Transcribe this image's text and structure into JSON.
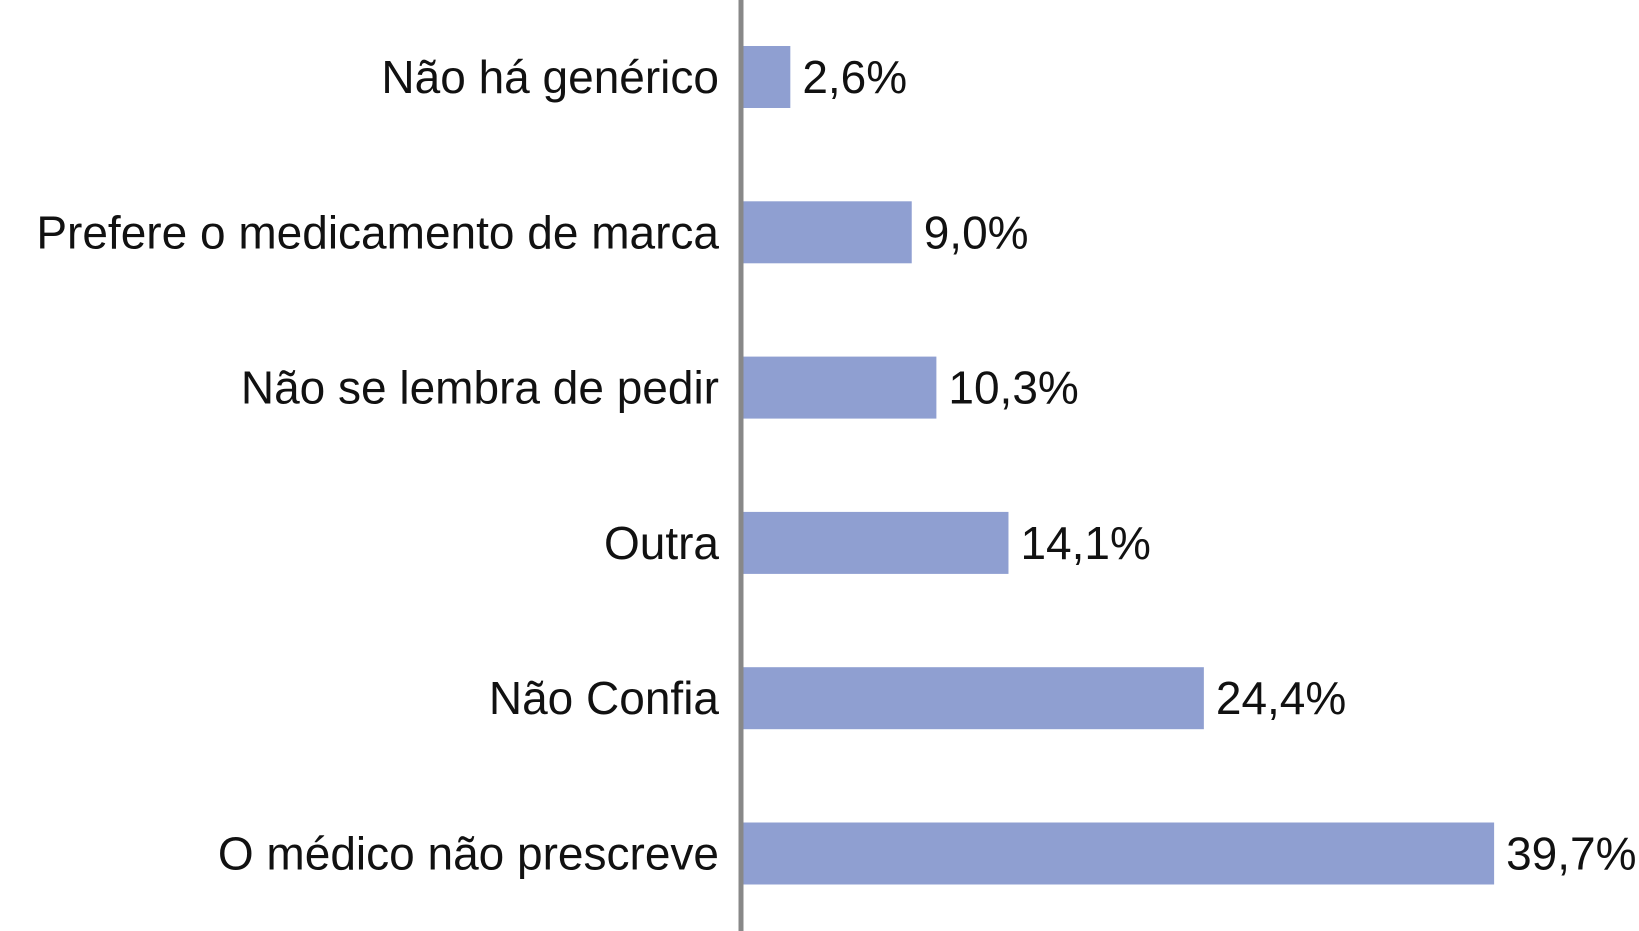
{
  "chart_data": {
    "type": "bar",
    "orientation": "horizontal",
    "categories": [
      "Não há genérico",
      "Prefere o medicamento de marca",
      "Não se lembra de pedir",
      "Outra",
      "Não Confia",
      "O médico não prescreve"
    ],
    "values": [
      2.6,
      9.0,
      10.3,
      14.1,
      24.4,
      39.7
    ],
    "value_labels": [
      "2,6%",
      "9,0%",
      "10,3%",
      "14,1%",
      "24,4%",
      "39,7%"
    ],
    "unit": "%",
    "xlim": [
      0,
      40
    ],
    "grid": false,
    "legend": "none",
    "colors": {
      "bar": "#8f9fd1",
      "axis": "#888888",
      "text": "#111111"
    }
  }
}
